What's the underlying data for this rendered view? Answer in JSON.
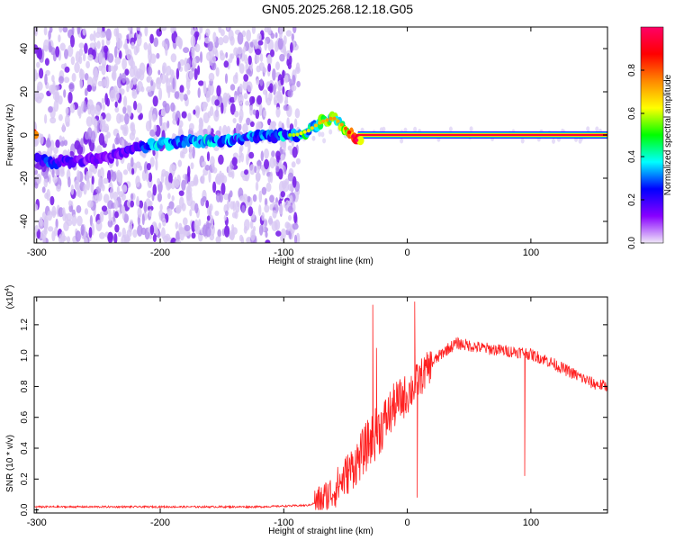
{
  "title": "GN05.2025.268.12.18.G05",
  "chart_data": [
    {
      "type": "heatmap",
      "xlabel": "Height of straight line (km)",
      "ylabel": "Frequency (Hz)",
      "xlim": [
        -302,
        162
      ],
      "ylim": [
        -50,
        50
      ],
      "xticks": [
        -300,
        -200,
        -100,
        0,
        100
      ],
      "yticks": [
        40,
        20,
        0,
        -20,
        -40
      ],
      "colorbar": {
        "label": "Normalized spectral amplitude",
        "range": [
          0,
          1
        ],
        "ticks": [
          "0.0",
          "0.2",
          "0.4",
          "0.6",
          "0.8"
        ],
        "tick_values": [
          0.0,
          0.2,
          0.4,
          0.6,
          0.8
        ],
        "colors": [
          "#f0e8f8",
          "#8800ff",
          "#0000ff",
          "#00ffff",
          "#00ff00",
          "#ffff00",
          "#ff8800",
          "#ff0000",
          "#ff0066"
        ]
      },
      "ridge": {
        "x": [
          -300,
          -290,
          -280,
          -260,
          -240,
          -220,
          -200,
          -180,
          -160,
          -140,
          -120,
          -100,
          -90,
          -80,
          -70,
          -60,
          -55,
          -50,
          -45,
          -40,
          -35,
          -30,
          -20,
          -10,
          0,
          50,
          100,
          160
        ],
        "y": [
          -10,
          -13,
          -12,
          -12,
          -10,
          -6,
          -4,
          -3,
          -3,
          -2,
          -1,
          0,
          0,
          2,
          6,
          8,
          6,
          3,
          0,
          -3,
          -2,
          -1,
          0,
          0,
          0,
          0,
          0,
          0
        ],
        "amplitude": [
          0.25,
          0.3,
          0.2,
          0.15,
          0.15,
          0.2,
          0.35,
          0.3,
          0.35,
          0.3,
          0.3,
          0.35,
          0.4,
          0.45,
          0.5,
          0.55,
          0.5,
          0.6,
          0.75,
          0.85,
          0.95,
          0.95,
          0.95,
          0.95,
          0.95,
          0.95,
          0.95,
          0.95
        ]
      }
    },
    {
      "type": "line",
      "xlabel": "Height of straight line (km)",
      "ylabel": "SNR (10 * v/v)",
      "y_multiplier_label": "(x10",
      "y_multiplier_exp": "4",
      "y_multiplier_close": ")",
      "xlim": [
        -302,
        162
      ],
      "ylim": [
        -0.02,
        1.38
      ],
      "xticks": [
        -300,
        -200,
        -100,
        0,
        100
      ],
      "yticks": [
        "0.0",
        "0.2",
        "0.4",
        "0.6",
        "0.8",
        "1.0",
        "1.2"
      ],
      "ytick_values": [
        0.0,
        0.2,
        0.4,
        0.6,
        0.8,
        1.0,
        1.2
      ],
      "series": [
        {
          "name": "SNR",
          "color": "#ff2020",
          "envelope_x": [
            -302,
            -120,
            -80,
            -70,
            -60,
            -50,
            -40,
            -30,
            -20,
            -10,
            0,
            10,
            20,
            30,
            40,
            60,
            80,
            95,
            110,
            130,
            150,
            162
          ],
          "envelope_y": [
            0.02,
            0.02,
            0.03,
            0.06,
            0.12,
            0.22,
            0.32,
            0.45,
            0.55,
            0.68,
            0.75,
            0.85,
            0.95,
            1.03,
            1.08,
            1.05,
            1.03,
            1.02,
            0.98,
            0.9,
            0.82,
            0.8
          ],
          "spikes": [
            {
              "x": -28,
              "y": 1.33
            },
            {
              "x": -25,
              "y": 1.05
            },
            {
              "x": 6,
              "y": 1.35
            },
            {
              "x": 8,
              "y": 0.08
            },
            {
              "x": 95,
              "y": 0.22
            }
          ]
        }
      ]
    }
  ]
}
